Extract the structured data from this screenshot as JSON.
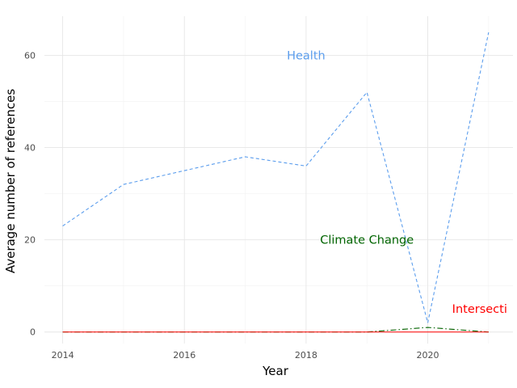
{
  "chart_data": {
    "type": "line",
    "title": "",
    "xlabel": "Year",
    "ylabel": "Average number of references",
    "x": [
      2014,
      2015,
      2016,
      2017,
      2018,
      2019,
      2020,
      2021
    ],
    "xlim": [
      2013.7,
      2021.4
    ],
    "ylim": [
      -2.5,
      68.5
    ],
    "xticks": [
      2014,
      2016,
      2018,
      2020
    ],
    "yticks": [
      0,
      20,
      40,
      60
    ],
    "grid": true,
    "legend": "none",
    "series": [
      {
        "name": "Health",
        "label": "Health",
        "color": "#5b9ded",
        "dash": "dashed",
        "values": [
          23,
          32,
          35,
          38,
          36,
          52,
          2,
          65
        ],
        "label_at": [
          2018,
          60
        ],
        "label_anchor": "middle"
      },
      {
        "name": "Climate Change",
        "label": "Climate Change",
        "color": "#006400",
        "dash": "dashdot",
        "values": [
          0,
          0,
          0,
          0,
          0,
          0,
          1,
          0
        ],
        "label_at": [
          2019,
          20
        ],
        "label_anchor": "middle"
      },
      {
        "name": "Intersection",
        "label": "Intersecti",
        "color": "#ff0000",
        "dash": "solid",
        "values": [
          0,
          0,
          0,
          0,
          0,
          0,
          0,
          0
        ],
        "label_at": [
          2020.4,
          5
        ],
        "label_anchor": "start"
      }
    ]
  }
}
